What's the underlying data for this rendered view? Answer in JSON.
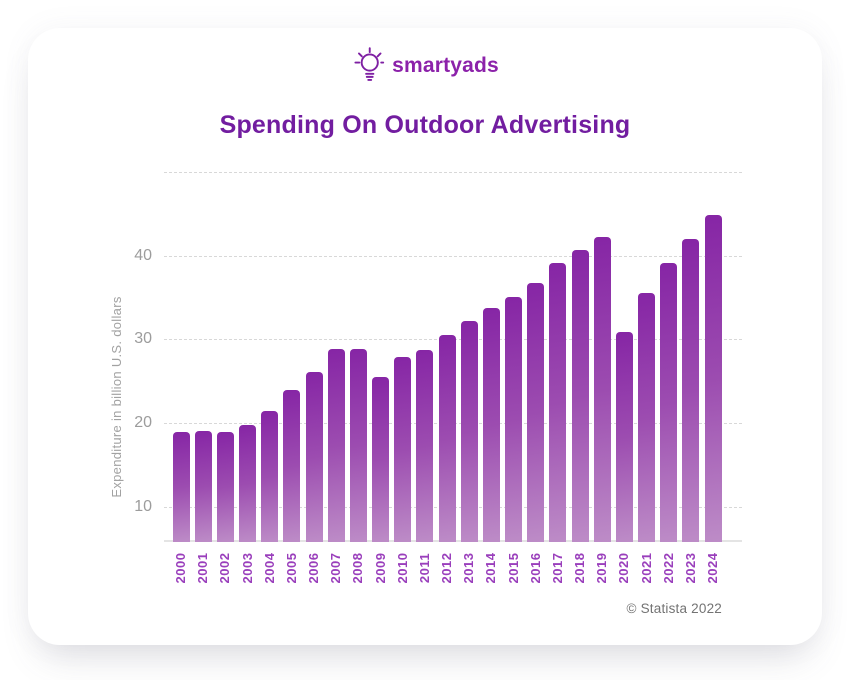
{
  "logo": {
    "brand": "smartyads",
    "icon": "lightbulb-icon",
    "color": "#8c22aa"
  },
  "title": "Spending On Outdoor Advertising",
  "title_color": "#721da0",
  "footer": {
    "attribution": "© Statista 2022"
  },
  "chart_data": {
    "type": "bar",
    "title": "Spending On Outdoor Advertising",
    "xlabel": "",
    "ylabel": "Expenditure in billion U.S. dollars",
    "categories": [
      "2000",
      "2001",
      "2002",
      "2003",
      "2004",
      "2005",
      "2006",
      "2007",
      "2008",
      "2009",
      "2010",
      "2011",
      "2012",
      "2013",
      "2014",
      "2015",
      "2016",
      "2017",
      "2018",
      "2019",
      "2020",
      "2021",
      "2022",
      "2023",
      "2024"
    ],
    "values": [
      18.9,
      19.1,
      18.9,
      19.8,
      21.5,
      24.0,
      26.1,
      28.9,
      28.9,
      25.5,
      27.9,
      28.7,
      30.5,
      32.2,
      33.7,
      35.1,
      36.7,
      39.1,
      40.7,
      42.2,
      30.9,
      35.6,
      39.1,
      42.0,
      44.9
    ],
    "ylim": [
      5.8,
      50
    ],
    "gridlines": [
      {
        "value": 50,
        "label": ""
      },
      {
        "value": 40,
        "label": "40"
      },
      {
        "value": 30,
        "label": "30"
      },
      {
        "value": 20,
        "label": "20"
      },
      {
        "value": 10,
        "label": "10"
      }
    ],
    "grid_style": "horizontal dashed",
    "legend": "none",
    "bar_gradient_top": "#8625a5",
    "bar_gradient_bottom": "#bd8cc7",
    "tick_label_color": "#9a3fbc",
    "axis_label_color": "#9c9c9c"
  }
}
